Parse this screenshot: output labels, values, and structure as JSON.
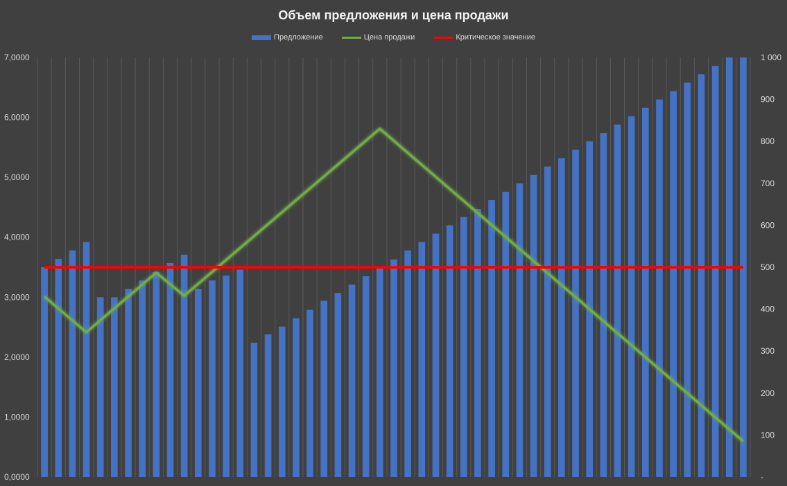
{
  "chart_data": {
    "type": "bar",
    "title": "Объем предложения и цена продажи",
    "legend_position": "top",
    "grid": "vertical",
    "colors": {
      "background": "#404040",
      "supply": "#4472c4",
      "price": "#70ad47",
      "critical": "#ff0000",
      "grid": "#5a5a5a",
      "text": "#d9d9d9"
    },
    "series": [
      {
        "name": "Предложение",
        "type": "bar",
        "axis": "left",
        "color": "#4472c4",
        "values": [
          3.5,
          3.64,
          3.78,
          3.92,
          3.0,
          3.0,
          3.14,
          3.28,
          3.42,
          3.57,
          3.71,
          3.14,
          3.28,
          3.36,
          3.46,
          2.24,
          2.38,
          2.51,
          2.65,
          2.79,
          2.94,
          3.07,
          3.21,
          3.35,
          3.49,
          3.63,
          3.78,
          3.92,
          4.06,
          4.2,
          4.34,
          4.47,
          4.62,
          4.76,
          4.9,
          5.04,
          5.18,
          5.32,
          5.46,
          5.6,
          5.74,
          5.88,
          6.02,
          6.16,
          6.3,
          6.44,
          6.58,
          6.72,
          6.86,
          7.0,
          7.0
        ]
      },
      {
        "name": "Цена продажи",
        "type": "line",
        "axis": "right",
        "color": "#70ad47",
        "points": [
          {
            "i": 0,
            "y": 430
          },
          {
            "i": 3,
            "y": 345
          },
          {
            "i": 8,
            "y": 487
          },
          {
            "i": 10,
            "y": 432
          },
          {
            "i": 24,
            "y": 830
          },
          {
            "i": 50,
            "y": 85
          }
        ]
      },
      {
        "name": "Критическое значение",
        "type": "line",
        "axis": "right",
        "color": "#ff0000",
        "points": [
          {
            "i": 0,
            "y": 500
          },
          {
            "i": 50,
            "y": 500
          }
        ]
      }
    ],
    "left_axis": {
      "ylim": [
        0,
        7
      ],
      "tick_labels": [
        "0,0000",
        "1,0000",
        "2,0000",
        "3,0000",
        "4,0000",
        "5,0000",
        "6,0000",
        "7,0000"
      ]
    },
    "right_axis": {
      "ylim": [
        0,
        1000
      ],
      "tick_labels": [
        "-",
        "100",
        "200",
        "300",
        "400",
        "500",
        "600",
        "700",
        "800",
        "900",
        "1 000"
      ]
    }
  }
}
